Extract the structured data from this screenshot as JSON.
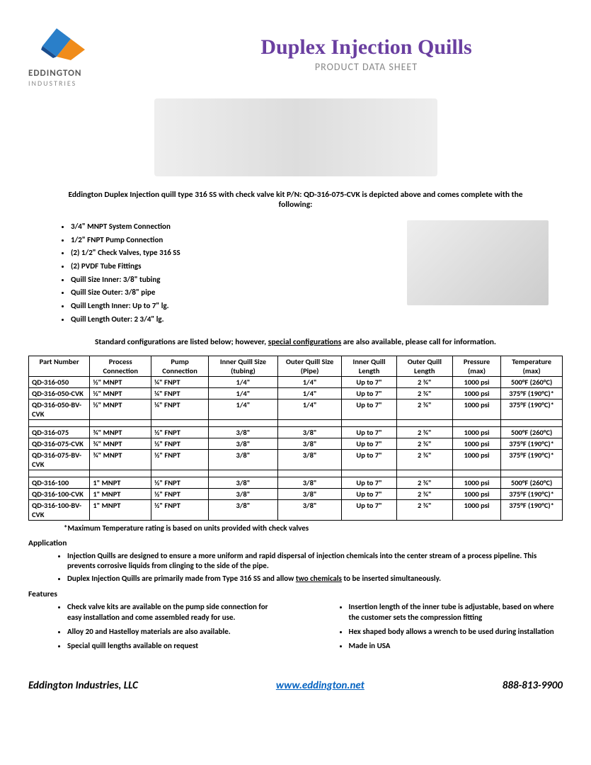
{
  "company": {
    "name": "EDDINGTON",
    "sub": "INDUSTRIES"
  },
  "title": "Duplex Injection Quills",
  "subtitle": "PRODUCT DATA SHEET",
  "intro": "Eddington Duplex Injection quill type 316 SS with check valve kit P/N: QD-316-075-CVK is depicted above and comes complete with the following:",
  "bullets": [
    "3/4\" MNPT System Connection",
    "1/2\" FNPT Pump Connection",
    "(2) 1/2\" Check Valves, type 316 SS",
    "(2) PVDF Tube Fittings",
    "Quill Size Inner:  3/8\" tubing",
    "Quill Size Outer:   3/8\" pipe",
    "Quill Length Inner: Up to 7\" lg.",
    "Quill Length Outer: 2 3/4\" lg."
  ],
  "config_note_a": "Standard configurations are listed below; however, ",
  "config_note_b": "special configurations",
  "config_note_c": " are also available, please call for information.",
  "table": {
    "columns": [
      "Part Number",
      "Process Connection",
      "Pump Connection",
      "Inner Quill Size (tubing)",
      "Outer Quill Size (Pipe)",
      "Inner Quill Length",
      "Outer Quill Length",
      "Pressure (max)",
      "Temperature (max)"
    ],
    "col_align": [
      "left",
      "left",
      "left",
      "center",
      "center",
      "center",
      "center",
      "center",
      "center"
    ],
    "groups": [
      [
        [
          "QD-316-050",
          "½\" MNPT",
          "¼\" FNPT",
          "1/4\"",
          "1/4\"",
          "Up to 7\"",
          "2 ¾\"",
          "1000 psi",
          "500°F (260°C)"
        ],
        [
          "QD-316-050-CVK",
          "½\" MNPT",
          "¼\" FNPT",
          "1/4\"",
          "1/4\"",
          "Up to 7\"",
          "2 ¾\"",
          "1000 psi",
          "375°F (190°C)*"
        ],
        [
          "QD-316-050-BV-CVK",
          "½\" MNPT",
          "¼\" FNPT",
          "1/4\"",
          "1/4\"",
          "Up to 7\"",
          "2 ¾\"",
          "1000 psi",
          "375°F (190°C)*"
        ]
      ],
      [
        [
          "QD-316-075",
          "¾\" MNPT",
          "½\" FNPT",
          "3/8\"",
          "3/8\"",
          "Up to 7\"",
          "2 ¾\"",
          "1000 psi",
          "500°F (260°C)"
        ],
        [
          "QD-316-075-CVK",
          "¾\" MNPT",
          "½\" FNPT",
          "3/8\"",
          "3/8\"",
          "Up to 7\"",
          "2 ¾\"",
          "1000 psi",
          "375°F (190°C)*"
        ],
        [
          "QD-316-075-BV-CVK",
          "¾\" MNPT",
          "½\" FNPT",
          "3/8\"",
          "3/8\"",
          "Up to 7\"",
          "2 ¾\"",
          "1000 psi",
          "375°F (190°C)*"
        ]
      ],
      [
        [
          "QD-316-100",
          "1\" MNPT",
          "½\" FNPT",
          "3/8\"",
          "3/8\"",
          "Up to 7\"",
          "2 ¾\"",
          "1000 psi",
          "500°F (260°C)"
        ],
        [
          "QD-316-100-CVK",
          "1\" MNPT",
          "½\" FNPT",
          "3/8\"",
          "3/8\"",
          "Up to 7\"",
          "2 ¾\"",
          "1000 psi",
          "375°F (190°C)*"
        ],
        [
          "QD-316-100-BV-CVK",
          "1\" MNPT",
          "½\" FNPT",
          "3/8\"",
          "3/8\"",
          "Up to 7\"",
          "2 ¾\"",
          "1000 psi",
          "375°F (190°C)*"
        ]
      ]
    ]
  },
  "footnote": "*Maximum Temperature rating is based on units provided with check valves",
  "application_h": "Application",
  "application": [
    {
      "pre": "Injection Quills are designed to ensure a more uniform and rapid dispersal of injection chemicals into the center stream of a process pipeline.  This prevents corrosive liquids from clinging to the side of the pipe.",
      "ul": "",
      "post": ""
    },
    {
      "pre": "Duplex Injection Quills are primarily made from Type 316 SS and allow ",
      "ul": "two chemicals",
      "post": " to be inserted simultaneously."
    }
  ],
  "features_h": "Features",
  "features_left": [
    "Check valve kits are available on the pump side connection for easy installation and come assembled ready for use.",
    "Alloy 20 and Hastelloy materials are also available.",
    "Special quill lengths available on request"
  ],
  "features_right": [
    "Insertion length of the inner tube is adjustable, based on where the customer sets the compression fitting",
    "Hex shaped body allows a wrench to be used during installation",
    "Made in USA"
  ],
  "footer": {
    "company": "Eddington Industries, LLC",
    "url": "www.eddington.net",
    "phone": "888-813-9900"
  },
  "colors": {
    "title": "#6a3fa0",
    "subtitle": "#888888",
    "link": "#0563c1",
    "logo_blue": "#2a7fc9",
    "logo_orange": "#f08c1a",
    "logo_dark": "#1a4c8c"
  }
}
